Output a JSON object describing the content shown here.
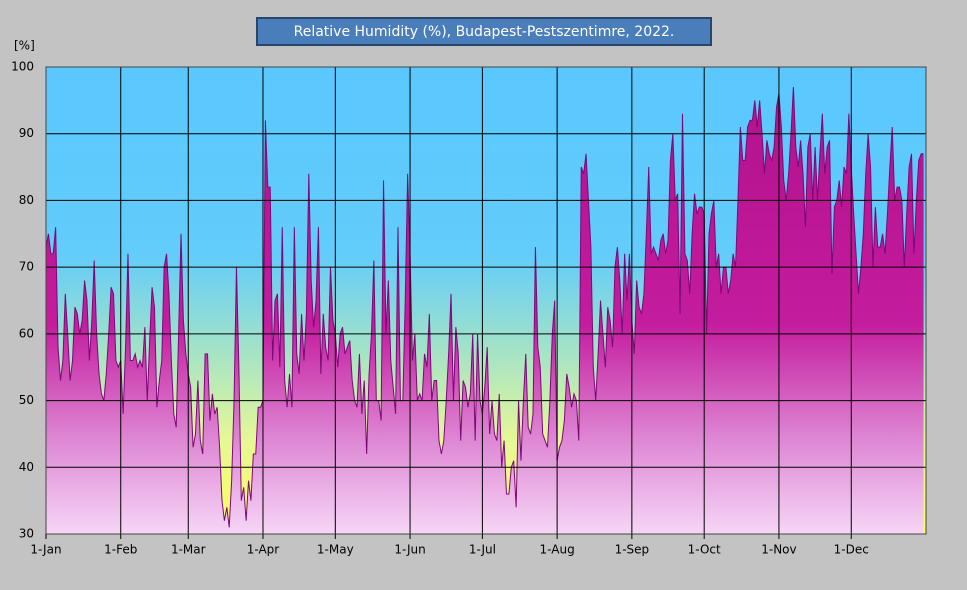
{
  "chart_data": {
    "type": "area",
    "title": "Relative Humidity (%), Budapest-Pestszentimre,  2022.",
    "y_label": "[%]",
    "color": "#c0189a",
    "line_color": "#7a0a78",
    "xlim": [
      0,
      365
    ],
    "xticks": [
      {
        "value": 0,
        "label": "1-Jan"
      },
      {
        "value": 31,
        "label": "1-Feb"
      },
      {
        "value": 59,
        "label": "1-Mar"
      },
      {
        "value": 90,
        "label": "1-Apr"
      },
      {
        "value": 120,
        "label": "1-May"
      },
      {
        "value": 151,
        "label": "1-Jun"
      },
      {
        "value": 181,
        "label": "1-Jul"
      },
      {
        "value": 212,
        "label": "1-Aug"
      },
      {
        "value": 243,
        "label": "1-Sep"
      },
      {
        "value": 273,
        "label": "1-Oct"
      },
      {
        "value": 304,
        "label": "1-Nov"
      },
      {
        "value": 334,
        "label": "1-Dec"
      }
    ],
    "ylim": [
      30,
      100
    ],
    "yticks": [
      30,
      40,
      50,
      60,
      70,
      80,
      90,
      100
    ],
    "grid": true,
    "values": [
      73,
      75,
      72,
      72,
      76,
      58,
      53,
      56,
      66,
      60,
      53,
      56,
      64,
      63,
      60,
      62,
      68,
      65,
      56,
      62,
      71,
      60,
      54,
      51,
      50,
      54,
      60,
      67,
      66,
      56,
      55,
      56,
      48,
      58,
      72,
      56,
      56,
      57,
      55,
      56,
      55,
      61,
      50,
      59,
      67,
      64,
      49,
      53,
      56,
      70,
      72,
      66,
      56,
      48,
      46,
      60,
      75,
      62,
      57,
      54,
      52,
      43,
      45,
      53,
      44,
      42,
      57,
      57,
      47,
      51,
      48,
      49,
      43,
      35,
      32,
      34,
      31,
      38,
      50,
      70,
      55,
      35,
      37,
      32,
      38,
      35,
      42,
      42,
      49,
      49,
      50,
      92,
      82,
      82,
      56,
      65,
      66,
      55,
      76,
      53,
      49,
      54,
      49,
      76,
      57,
      54,
      63,
      56,
      63,
      84,
      68,
      61,
      65,
      76,
      54,
      63,
      58,
      56,
      70,
      62,
      60,
      55,
      60,
      61,
      57,
      58,
      59,
      53,
      50,
      49,
      57,
      48,
      53,
      42,
      54,
      60,
      71,
      50,
      50,
      47,
      83,
      60,
      68,
      56,
      52,
      48,
      76,
      50,
      50,
      65,
      84,
      72,
      56,
      60,
      50,
      51,
      50,
      57,
      55,
      63,
      50,
      53,
      53,
      44,
      42,
      44,
      50,
      57,
      66,
      50,
      61,
      57,
      44,
      53,
      52,
      49,
      51,
      60,
      44,
      60,
      50,
      48,
      52,
      58,
      45,
      50,
      45,
      44,
      51,
      40,
      44,
      36,
      36,
      40,
      41,
      34,
      50,
      41,
      50,
      57,
      46,
      45,
      48,
      73,
      58,
      55,
      45,
      44,
      43,
      50,
      60,
      65,
      41,
      43,
      44,
      47,
      54,
      52,
      49,
      51,
      50,
      44,
      85,
      84,
      87,
      80,
      73,
      55,
      50,
      57,
      65,
      60,
      55,
      64,
      62,
      58,
      70,
      73,
      68,
      60,
      72,
      65,
      72,
      62,
      57,
      68,
      64,
      63,
      66,
      75,
      85,
      72,
      73,
      72,
      71,
      74,
      75,
      72,
      74,
      86,
      90,
      80,
      81,
      63,
      93,
      72,
      71,
      66,
      75,
      81,
      78,
      79,
      79,
      78,
      60,
      75,
      78,
      80,
      70,
      72,
      66,
      70,
      70,
      66,
      68,
      72,
      70,
      80,
      91,
      86,
      86,
      91,
      92,
      92,
      95,
      91,
      95,
      90,
      84,
      89,
      87,
      86,
      88,
      94,
      96,
      91,
      83,
      80,
      84,
      90,
      97,
      88,
      85,
      89,
      84,
      76,
      88,
      90,
      80,
      88,
      80,
      87,
      93,
      84,
      88,
      89,
      69,
      79,
      80,
      83,
      79,
      85,
      84,
      93,
      85,
      78,
      72,
      66,
      70,
      75,
      84,
      90,
      85,
      70,
      79,
      73,
      73,
      75,
      72,
      78,
      85,
      91,
      80,
      82,
      82,
      80,
      70,
      78,
      85,
      87,
      72,
      80,
      86,
      87,
      87
    ]
  }
}
